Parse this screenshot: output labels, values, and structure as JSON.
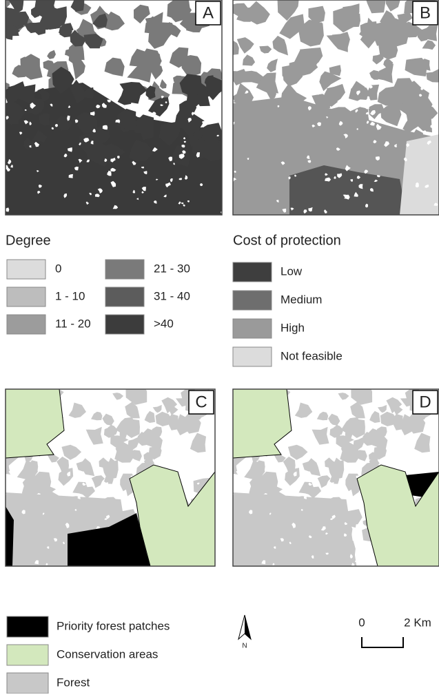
{
  "panels": [
    {
      "label": "A"
    },
    {
      "label": "B"
    },
    {
      "label": "C"
    },
    {
      "label": "D"
    }
  ],
  "legend_degree": {
    "title": "Degree",
    "items": [
      {
        "label": "0",
        "color": "#dcdcdc"
      },
      {
        "label": "1 - 10",
        "color": "#bdbdbd"
      },
      {
        "label": "11 - 20",
        "color": "#9c9c9c"
      },
      {
        "label": "21 - 30",
        "color": "#7a7a7a"
      },
      {
        "label": "31 - 40",
        "color": "#5c5c5c"
      },
      {
        "label": ">40",
        "color": "#3c3c3c"
      }
    ]
  },
  "legend_cost": {
    "title": "Cost of protection",
    "items": [
      {
        "label": "Low",
        "color": "#3e3e3e"
      },
      {
        "label": "Medium",
        "color": "#6e6e6e"
      },
      {
        "label": "High",
        "color": "#9a9a9a"
      },
      {
        "label": "Not feasible",
        "color": "#dcdcdc"
      }
    ]
  },
  "legend_map": {
    "items": [
      {
        "label": "Priority forest patches",
        "color": "#000000"
      },
      {
        "label": "Conservation areas",
        "color": "#d3e8bd"
      },
      {
        "label": "Forest",
        "color": "#c8c8c8"
      }
    ]
  },
  "north_arrow": {
    "label": "N"
  },
  "scale_bar": {
    "labels": [
      "0",
      "2 Km"
    ]
  }
}
